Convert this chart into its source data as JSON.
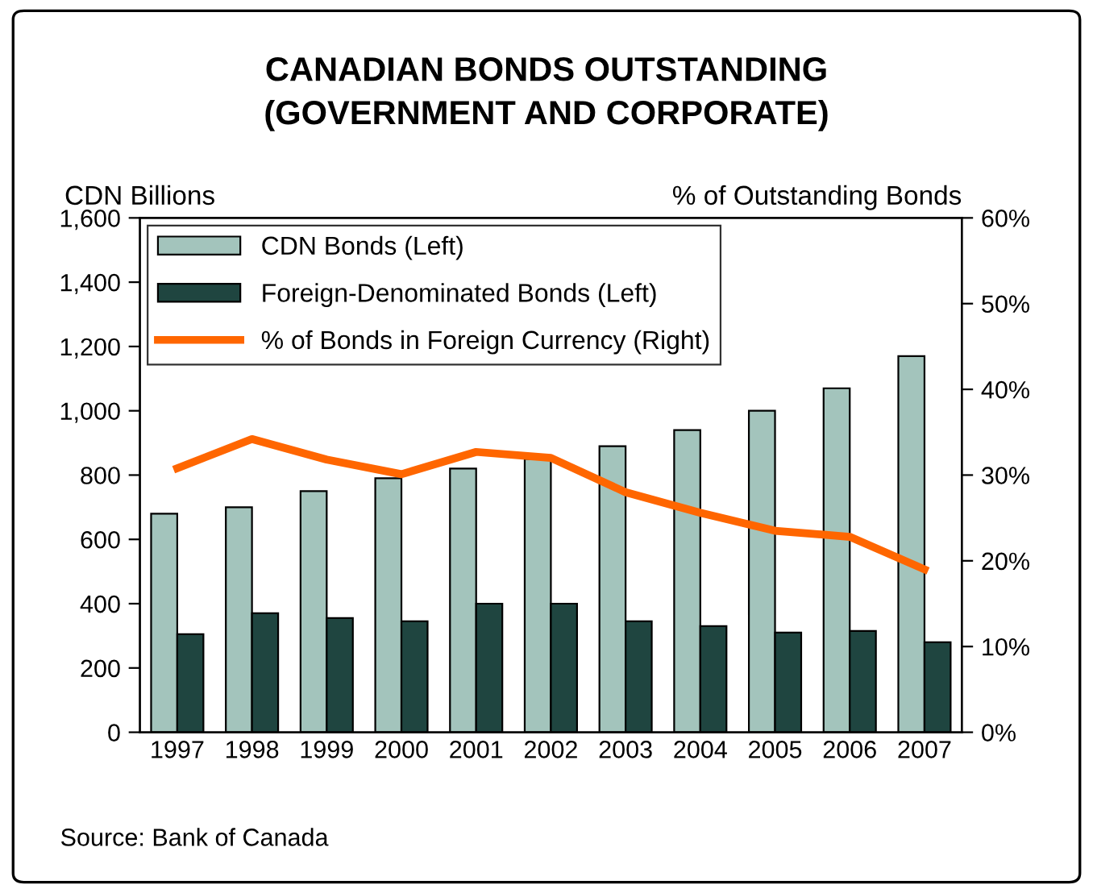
{
  "chart_data": {
    "type": "bar",
    "title": "CANADIAN BONDS OUTSTANDING\n(GOVERNMENT AND CORPORATE)",
    "ylabel": "CDN Billions",
    "y2label": "% of Outstanding Bonds",
    "categories": [
      "1997",
      "1998",
      "1999",
      "2000",
      "2001",
      "2002",
      "2003",
      "2004",
      "2005",
      "2006",
      "2007"
    ],
    "series": [
      {
        "name": "CDN Bonds (Left)",
        "color": "#a3c4bc",
        "values": [
          680,
          700,
          750,
          790,
          820,
          850,
          890,
          940,
          1000,
          1070,
          1170
        ]
      },
      {
        "name": "Foreign-Denominated Bonds (Left)",
        "color": "#1f4540",
        "values": [
          305,
          370,
          355,
          345,
          400,
          400,
          345,
          330,
          310,
          315,
          280
        ]
      },
      {
        "name": "% of Bonds in Foreign Currency (Right)",
        "type": "line",
        "axis": "y2",
        "color": "#ff6600",
        "values": [
          30.8,
          34.2,
          31.8,
          30.1,
          32.7,
          32.0,
          28.0,
          25.6,
          23.5,
          22.8,
          19.0
        ]
      }
    ],
    "ylim": [
      0,
      1600
    ],
    "yticks": [
      {
        "value": 0,
        "label": "0"
      },
      {
        "value": 200,
        "label": "200"
      },
      {
        "value": 400,
        "label": "400"
      },
      {
        "value": 600,
        "label": "600"
      },
      {
        "value": 800,
        "label": "800"
      },
      {
        "value": 1000,
        "label": "1,000"
      },
      {
        "value": 1200,
        "label": "1,200"
      },
      {
        "value": 1400,
        "label": "1,400"
      },
      {
        "value": 1600,
        "label": "1,600"
      }
    ],
    "y2lim": [
      0,
      60
    ],
    "y2ticks": [
      {
        "value": 0,
        "label": "0%"
      },
      {
        "value": 10,
        "label": "10%"
      },
      {
        "value": 20,
        "label": "20%"
      },
      {
        "value": 30,
        "label": "30%"
      },
      {
        "value": 40,
        "label": "40%"
      },
      {
        "value": 50,
        "label": "50%"
      },
      {
        "value": 60,
        "label": "60%"
      }
    ],
    "legend": "top left",
    "grid": false,
    "marker": "none",
    "line_style": "solid",
    "annotations": [
      "Source: Bank of Canada"
    ]
  }
}
